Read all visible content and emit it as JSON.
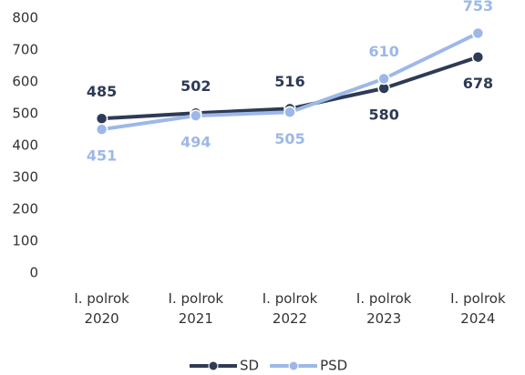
{
  "chart_data": {
    "type": "line",
    "categories": [
      "I. polrok 2020",
      "I. polrok 2021",
      "I. polrok 2022",
      "I. polrok 2023",
      "I. polrok 2024"
    ],
    "series": [
      {
        "name": "SD",
        "color": "#2e3b55",
        "values": [
          485,
          502,
          516,
          580,
          678
        ]
      },
      {
        "name": "PSD",
        "color": "#9db8e8",
        "values": [
          451,
          494,
          505,
          610,
          753
        ]
      }
    ],
    "ylim": [
      0,
      800
    ],
    "yticks": [
      0,
      100,
      200,
      300,
      400,
      500,
      600,
      700,
      800
    ],
    "grid": false,
    "legend": "bottom"
  }
}
